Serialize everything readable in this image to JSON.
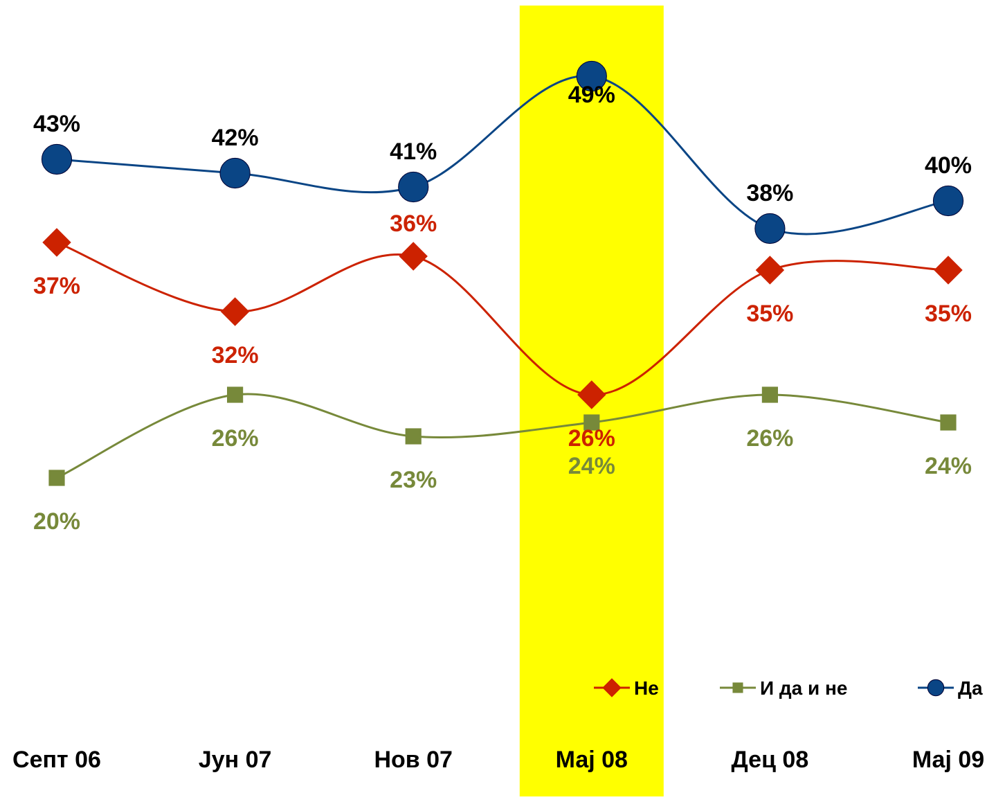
{
  "chart_data": {
    "type": "line",
    "title": "",
    "xlabel": "",
    "ylabel": "",
    "categories": [
      "Септ 06",
      "Јун 07",
      "Нов 07",
      "Мај 08",
      "Дец 08",
      "Мај 09"
    ],
    "highlight_category": "Мај 08",
    "highlight_color": "#FFFF00",
    "ylim": [
      12,
      53
    ],
    "grid": false,
    "smooth": true,
    "legend_position": "bottom-right",
    "series": [
      {
        "name": "Не",
        "marker": "diamond",
        "color": "#CC2200",
        "label_color": "#CC2200",
        "values": [
          37,
          32,
          36,
          26,
          35,
          35
        ],
        "labels": [
          "37%",
          "32%",
          "36%",
          "26%",
          "35%",
          "35%"
        ]
      },
      {
        "name": "И да и не",
        "marker": "square",
        "color": "#77893A",
        "label_color": "#77893A",
        "values": [
          20,
          26,
          23,
          24,
          26,
          24
        ],
        "labels": [
          "20%",
          "26%",
          "23%",
          "24%",
          "26%",
          "24%"
        ]
      },
      {
        "name": "Да",
        "marker": "circle",
        "color": "#0A4585",
        "label_color": "#000000",
        "values": [
          43,
          42,
          41,
          49,
          38,
          40
        ],
        "labels": [
          "43%",
          "42%",
          "41%",
          "49%",
          "38%",
          "40%"
        ]
      }
    ]
  }
}
